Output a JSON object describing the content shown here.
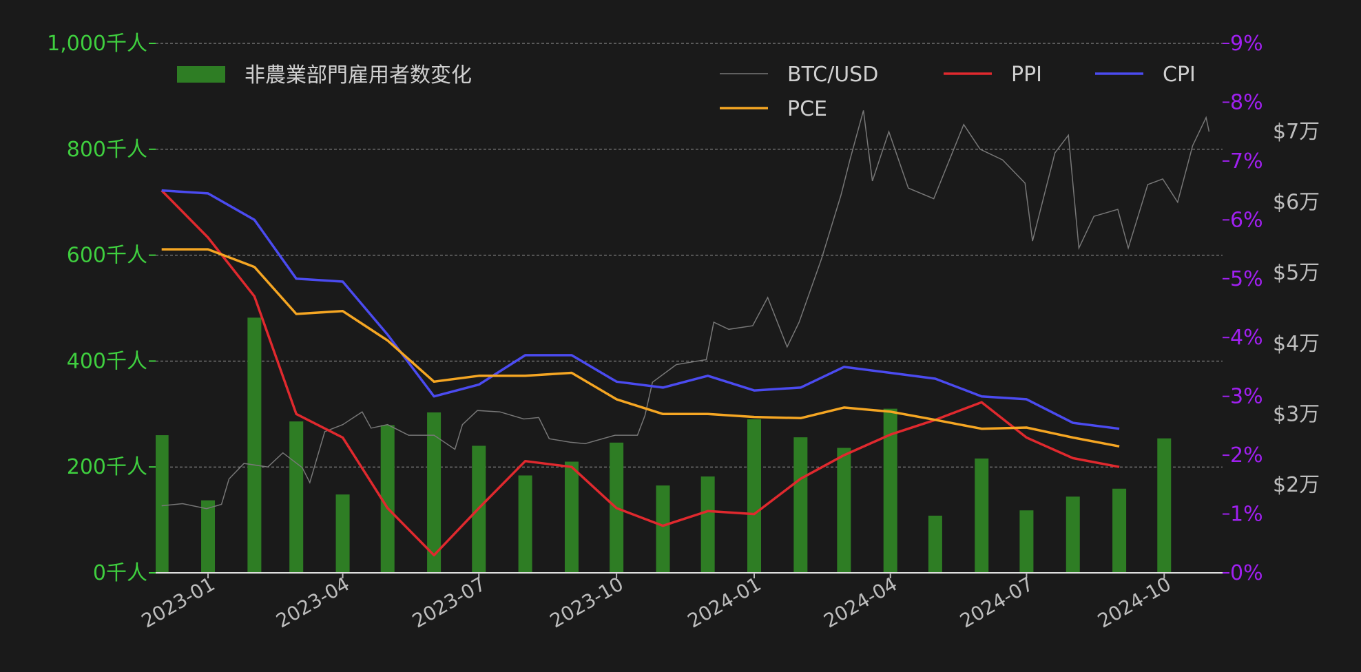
{
  "chart_data": {
    "type": "bar",
    "categories": [
      "2022-12",
      "2023-01",
      "2023-02",
      "2023-03",
      "2023-04",
      "2023-05",
      "2023-06",
      "2023-07",
      "2023-08",
      "2023-09",
      "2023-10",
      "2023-11",
      "2023-12",
      "2024-01",
      "2024-02",
      "2024-03",
      "2024-04",
      "2024-05",
      "2024-06",
      "2024-07",
      "2024-08",
      "2024-09"
    ],
    "bar_series": {
      "name": "非農業部門雇用者数変化",
      "values": [
        260,
        137,
        482,
        286,
        148,
        279,
        303,
        240,
        184,
        210,
        246,
        165,
        182,
        290,
        256,
        236,
        310,
        108,
        216,
        118,
        144,
        159,
        254
      ],
      "color": "#2e7d24"
    },
    "bar_months": [
      "2022-12",
      "2023-01",
      "2023-02",
      "2023-03",
      "2023-04",
      "2023-05",
      "2023-06",
      "2023-07",
      "2023-08",
      "2023-09",
      "2023-10",
      "2023-11",
      "2023-12",
      "2024-01",
      "2024-02",
      "2024-03",
      "2024-04",
      "2024-05",
      "2024-06",
      "2024-07",
      "2024-08",
      "2024-09",
      "2024-10"
    ],
    "line_months": [
      "2022-12",
      "2023-01",
      "2023-02",
      "2023-03",
      "2023-04",
      "2023-05",
      "2023-06",
      "2023-07",
      "2023-08",
      "2023-09",
      "2023-10",
      "2023-11",
      "2023-12",
      "2024-01",
      "2024-02",
      "2024-03",
      "2024-04",
      "2024-05",
      "2024-06",
      "2024-07",
      "2024-08",
      "2024-09"
    ],
    "series": [
      {
        "name": "PPI",
        "color": "#e0292e",
        "values": [
          6.5,
          5.7,
          4.7,
          2.7,
          2.3,
          1.1,
          0.3,
          1.1,
          1.9,
          1.8,
          1.1,
          0.8,
          1.05,
          1.0,
          1.6,
          2.0,
          2.35,
          2.6,
          2.9,
          2.3,
          1.95,
          1.8
        ]
      },
      {
        "name": "CPI",
        "color": "#4b4bf0",
        "values": [
          6.5,
          6.45,
          6.0,
          5.0,
          4.95,
          4.05,
          3.0,
          3.2,
          3.7,
          3.7,
          3.25,
          3.15,
          3.35,
          3.1,
          3.15,
          3.5,
          3.4,
          3.3,
          3.0,
          2.95,
          2.55,
          2.45
        ]
      },
      {
        "name": "PCE",
        "color": "#f5a623",
        "values": [
          5.5,
          5.5,
          5.2,
          4.4,
          4.45,
          3.95,
          3.25,
          3.35,
          3.35,
          3.4,
          2.95,
          2.7,
          2.7,
          2.65,
          2.63,
          2.81,
          2.74,
          2.6,
          2.45,
          2.47,
          2.3,
          2.15
        ]
      }
    ],
    "btc": {
      "name": "BTC/USD",
      "color": "#777777",
      "points": [
        [
          "2022-12-01",
          17000
        ],
        [
          "2022-12-15",
          17300
        ],
        [
          "2022-12-31",
          16600
        ],
        [
          "2023-01-10",
          17200
        ],
        [
          "2023-01-15",
          20800
        ],
        [
          "2023-01-25",
          23000
        ],
        [
          "2023-02-10",
          22500
        ],
        [
          "2023-02-20",
          24500
        ],
        [
          "2023-03-05",
          22400
        ],
        [
          "2023-03-10",
          20300
        ],
        [
          "2023-03-20",
          27500
        ],
        [
          "2023-04-01",
          28500
        ],
        [
          "2023-04-14",
          30300
        ],
        [
          "2023-04-20",
          28000
        ],
        [
          "2023-05-01",
          28500
        ],
        [
          "2023-05-15",
          27000
        ],
        [
          "2023-06-01",
          27000
        ],
        [
          "2023-06-15",
          25000
        ],
        [
          "2023-06-20",
          28500
        ],
        [
          "2023-06-30",
          30500
        ],
        [
          "2023-07-15",
          30300
        ],
        [
          "2023-07-31",
          29300
        ],
        [
          "2023-08-10",
          29500
        ],
        [
          "2023-08-17",
          26500
        ],
        [
          "2023-08-31",
          26000
        ],
        [
          "2023-09-10",
          25800
        ],
        [
          "2023-09-30",
          27000
        ],
        [
          "2023-10-15",
          27000
        ],
        [
          "2023-10-20",
          29800
        ],
        [
          "2023-10-25",
          34500
        ],
        [
          "2023-11-10",
          37000
        ],
        [
          "2023-11-30",
          37700
        ],
        [
          "2023-12-05",
          43000
        ],
        [
          "2023-12-15",
          42000
        ],
        [
          "2023-12-31",
          42500
        ],
        [
          "2024-01-10",
          46500
        ],
        [
          "2024-01-23",
          39500
        ],
        [
          "2024-01-31",
          43000
        ],
        [
          "2024-02-15",
          52000
        ],
        [
          "2024-02-28",
          61000
        ],
        [
          "2024-03-05",
          66000
        ],
        [
          "2024-03-14",
          73000
        ],
        [
          "2024-03-20",
          63000
        ],
        [
          "2024-03-31",
          70000
        ],
        [
          "2024-04-13",
          62000
        ],
        [
          "2024-04-30",
          60500
        ],
        [
          "2024-05-20",
          71000
        ],
        [
          "2024-05-31",
          67500
        ],
        [
          "2024-06-15",
          66000
        ],
        [
          "2024-06-30",
          62700
        ],
        [
          "2024-07-05",
          54500
        ],
        [
          "2024-07-20",
          67000
        ],
        [
          "2024-07-29",
          69500
        ],
        [
          "2024-08-05",
          53500
        ],
        [
          "2024-08-15",
          58000
        ],
        [
          "2024-08-31",
          59000
        ],
        [
          "2024-09-07",
          53500
        ],
        [
          "2024-09-20",
          62500
        ],
        [
          "2024-09-30",
          63300
        ],
        [
          "2024-10-10",
          60000
        ],
        [
          "2024-10-20",
          68000
        ],
        [
          "2024-10-29",
          72000
        ],
        [
          "2024-10-31",
          70000
        ]
      ]
    },
    "axes": {
      "y_left": {
        "min": 0,
        "max": 1000,
        "ticks": [
          "0千人",
          "200千人",
          "400千人",
          "600千人",
          "800千人",
          "1,000千人"
        ],
        "tick_values": [
          0,
          200,
          400,
          600,
          800,
          1000
        ],
        "color": "#3fcf3f"
      },
      "y_right_pct": {
        "min": 0,
        "max": 9,
        "ticks": [
          "0%",
          "1%",
          "2%",
          "3%",
          "4%",
          "5%",
          "6%",
          "7%",
          "8%",
          "9%"
        ],
        "tick_values": [
          0,
          1,
          2,
          3,
          4,
          5,
          6,
          7,
          8,
          9
        ],
        "color": "#a020f0"
      },
      "y_right_btc": {
        "ticks": [
          "$2万",
          "$3万",
          "$4万",
          "$5万",
          "$6万",
          "$7万"
        ],
        "tick_values": [
          20000,
          30000,
          40000,
          50000,
          60000,
          70000
        ],
        "color": "#bdbdbd"
      },
      "x": {
        "ticks": [
          "2023-01",
          "2023-04",
          "2023-07",
          "2023-10",
          "2024-01",
          "2024-04",
          "2024-07",
          "2024-10"
        ],
        "tick_dates": [
          "2023-01-01",
          "2023-04-01",
          "2023-07-01",
          "2023-10-01",
          "2024-01-01",
          "2024-04-01",
          "2024-07-01",
          "2024-10-01"
        ]
      }
    },
    "grid": "horizontal dashed",
    "legend": {
      "left": [
        "非農業部門雇用者数変化"
      ],
      "right": [
        "BTC/USD",
        "PPI",
        "CPI",
        "PCE"
      ],
      "placement": "top"
    }
  }
}
